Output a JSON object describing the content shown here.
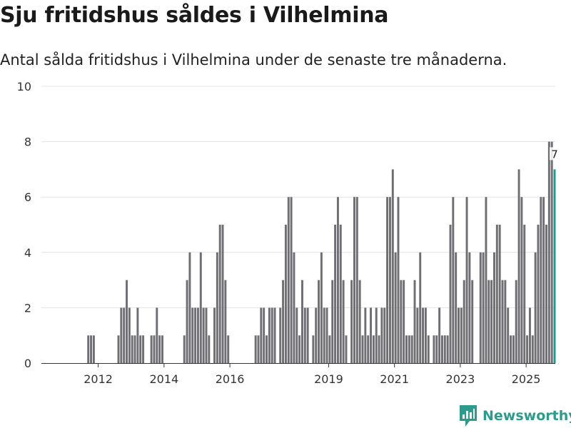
{
  "header": {
    "title": "Sju fritidshus såldes i Vilhelmina",
    "subtitle": "Antal sålda fritidshus i Vilhelmina under de senaste tre månaderna."
  },
  "brand": {
    "name": "Newsworthy"
  },
  "colors": {
    "bar": "#6f6e73",
    "highlight": "#1f9a8b",
    "grid": "#e3e3e3",
    "axis": "#333333",
    "brand": "#2e9a8c"
  },
  "chart_data": {
    "type": "bar",
    "title": "Sju fritidshus såldes i Vilhelmina",
    "xlabel": "",
    "ylabel": "",
    "ylim": [
      0,
      10
    ],
    "yticks": [
      0,
      2,
      4,
      6,
      8,
      10
    ],
    "xticks": [
      "2012",
      "2014",
      "2016",
      "2019",
      "2021",
      "2023",
      "2025"
    ],
    "x_start": "2011-01",
    "interval": "month",
    "values": [
      0,
      0,
      0,
      0,
      0,
      0,
      0,
      0,
      1,
      1,
      1,
      0,
      0,
      0,
      0,
      0,
      0,
      0,
      0,
      1,
      2,
      2,
      3,
      2,
      1,
      1,
      2,
      1,
      1,
      0,
      0,
      1,
      1,
      2,
      1,
      1,
      0,
      0,
      0,
      0,
      0,
      0,
      0,
      1,
      3,
      4,
      2,
      2,
      2,
      4,
      2,
      2,
      1,
      0,
      2,
      4,
      5,
      5,
      3,
      1,
      0,
      0,
      0,
      0,
      0,
      0,
      0,
      0,
      0,
      1,
      1,
      2,
      2,
      1,
      2,
      2,
      2,
      0,
      2,
      3,
      5,
      6,
      6,
      4,
      2,
      1,
      3,
      2,
      2,
      0,
      1,
      2,
      3,
      4,
      2,
      2,
      1,
      3,
      5,
      6,
      5,
      3,
      1,
      0,
      3,
      6,
      6,
      3,
      1,
      2,
      1,
      2,
      1,
      2,
      1,
      2,
      2,
      6,
      6,
      7,
      4,
      6,
      3,
      3,
      1,
      1,
      1,
      3,
      2,
      4,
      2,
      2,
      1,
      0,
      1,
      1,
      2,
      1,
      1,
      1,
      5,
      6,
      4,
      2,
      2,
      3,
      6,
      4,
      3,
      0,
      0,
      4,
      4,
      6,
      3,
      3,
      4,
      5,
      5,
      3,
      3,
      2,
      1,
      1,
      3,
      7,
      6,
      5,
      1,
      2,
      1,
      4,
      5,
      6,
      6,
      5,
      8,
      8,
      7
    ],
    "highlight": {
      "label": "7",
      "value": 7,
      "period": "senaste tre månaderna"
    }
  }
}
